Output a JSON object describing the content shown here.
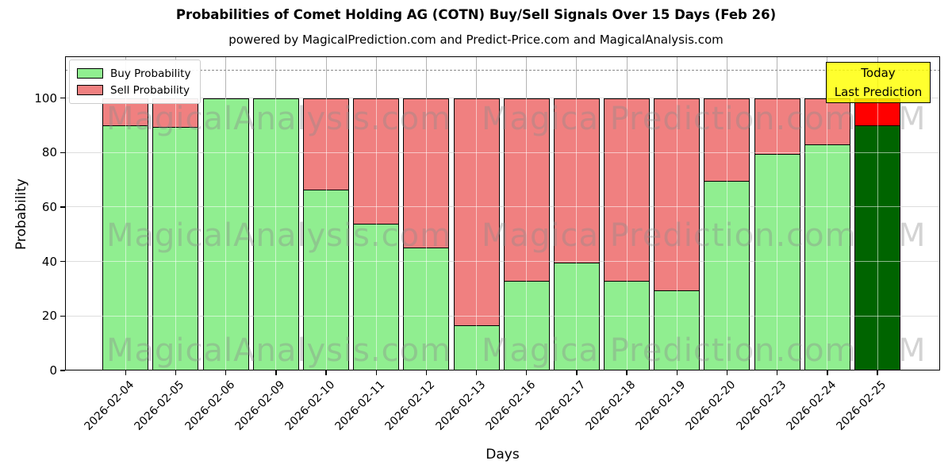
{
  "chart_data": {
    "type": "bar",
    "stacked": true,
    "title": "Probabilities of Comet Holding AG (COTN) Buy/Sell Signals Over 15 Days (Feb 26)",
    "subtitle": "powered by MagicalPrediction.com and Predict-Price.com and MagicalAnalysis.com",
    "xlabel": "Days",
    "ylabel": "Probability",
    "ylim": [
      0,
      115.3
    ],
    "yticks": [
      0,
      20,
      40,
      60,
      80,
      100
    ],
    "dashed_threshold_y": 110,
    "grid": true,
    "legend_position": "upper left",
    "categories": [
      "2026-02-04",
      "2026-02-05",
      "2026-02-06",
      "2026-02-09",
      "2026-02-10",
      "2026-02-11",
      "2026-02-12",
      "2026-02-13",
      "2026-02-16",
      "2026-02-17",
      "2026-02-18",
      "2026-02-19",
      "2026-02-20",
      "2026-02-23",
      "2026-02-24",
      "2026-02-25"
    ],
    "series": [
      {
        "name": "Buy Probability",
        "color": "#90EE90",
        "values": [
          90,
          89.5,
          100,
          100,
          66.5,
          54,
          45,
          16.5,
          33,
          39.5,
          33,
          29.5,
          69.5,
          79.5,
          83,
          90
        ]
      },
      {
        "name": "Sell Probability",
        "color": "#F08080",
        "values": [
          10,
          10.5,
          0,
          0,
          33.5,
          46,
          55,
          83.5,
          67,
          60.5,
          67,
          70.5,
          30.5,
          20.5,
          17,
          10
        ]
      }
    ],
    "today_bar": {
      "category": "2026-02-25",
      "buy_color": "#006400",
      "sell_color": "#FF0000"
    },
    "annotation": {
      "lines": [
        "Today",
        "Last Prediction"
      ],
      "bg_color": "#FFFF00"
    },
    "legend": {
      "entries": [
        {
          "label": "Buy Probability",
          "color": "#90EE90"
        },
        {
          "label": "Sell Probability",
          "color": "#F08080"
        }
      ]
    },
    "watermark": {
      "texts": [
        "MagicalAnalysis.com",
        "Magica Prediction.com",
        "M"
      ],
      "xs": [
        52,
        525,
        1050
      ],
      "row_tops": [
        59,
        206,
        351
      ]
    }
  }
}
